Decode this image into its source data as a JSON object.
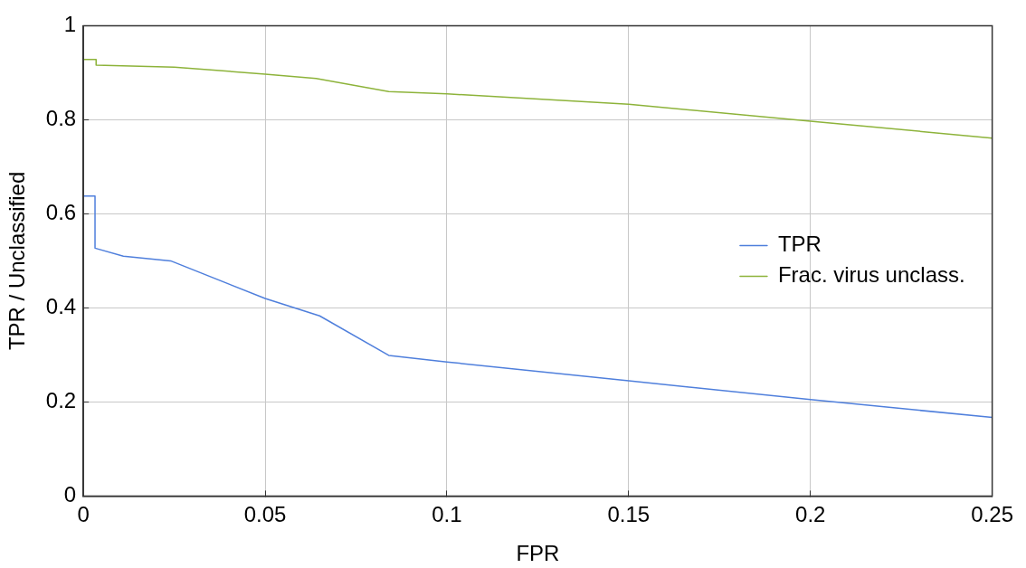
{
  "chart_data": {
    "type": "line",
    "xlabel": "FPR",
    "ylabel": "TPR / Unclassified",
    "xlim": [
      0,
      0.25
    ],
    "xticks": [
      0,
      0.05,
      0.1,
      0.15,
      0.2,
      0.25
    ],
    "ylim": [
      0,
      1
    ],
    "yticks": [
      0,
      0.2,
      0.4,
      0.6,
      0.8,
      1
    ],
    "grid": true,
    "legend": "right",
    "series": [
      {
        "name": "TPR",
        "color": "#4f7fdc",
        "x": [
          0,
          0.0032,
          0.0032,
          0.011,
          0.024,
          0.05,
          0.065,
          0.084,
          0.1,
          0.15,
          0.2,
          0.25
        ],
        "values": [
          0.638,
          0.638,
          0.527,
          0.51,
          0.5,
          0.42,
          0.383,
          0.299,
          0.285,
          0.245,
          0.205,
          0.167
        ]
      },
      {
        "name": "Frac. virus unclass.",
        "color": "#8db33a",
        "x": [
          0,
          0.0035,
          0.0035,
          0.025,
          0.05,
          0.064,
          0.084,
          0.1,
          0.15,
          0.2,
          0.25
        ],
        "values": [
          0.928,
          0.928,
          0.916,
          0.912,
          0.897,
          0.888,
          0.86,
          0.855,
          0.833,
          0.797,
          0.761
        ]
      }
    ]
  }
}
